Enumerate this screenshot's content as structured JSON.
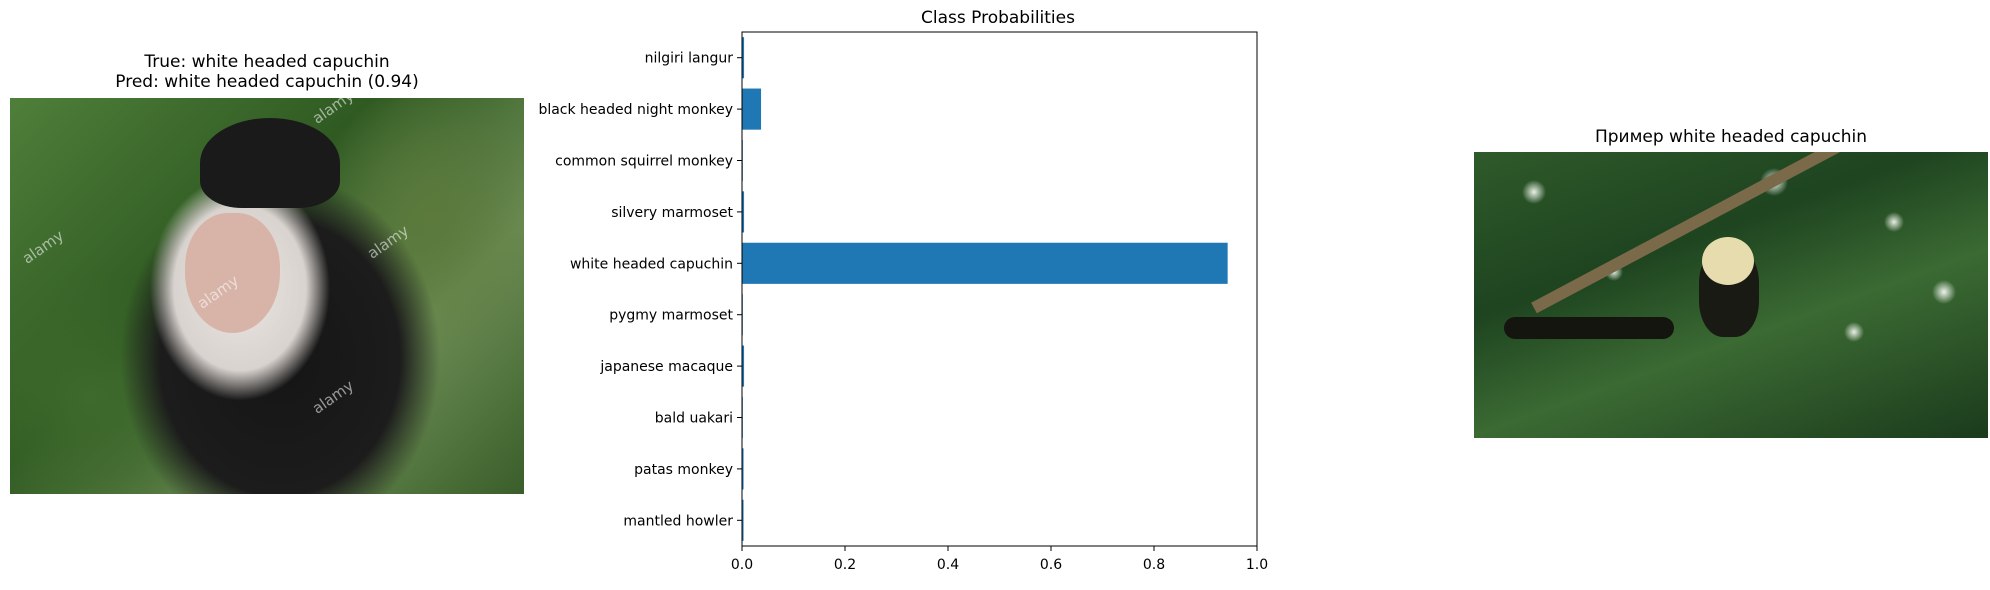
{
  "left_panel": {
    "title_line1": "True: white headed capuchin",
    "title_line2": "Pred: white headed capuchin (0.94)",
    "watermark": "alamy"
  },
  "right_panel": {
    "title": "Пример white headed capuchin"
  },
  "chart_data": {
    "type": "bar",
    "orientation": "horizontal",
    "title": "Class Probabilities",
    "categories": [
      "nilgiri langur",
      "black headed night monkey",
      "common squirrel monkey",
      "silvery marmoset",
      "white headed capuchin",
      "pygmy marmoset",
      "japanese macaque",
      "bald uakari",
      "patas monkey",
      "mantled howler"
    ],
    "values": [
      0.004,
      0.037,
      0.001,
      0.004,
      0.943,
      0.001,
      0.004,
      0.001,
      0.003,
      0.003
    ],
    "xlim": [
      0,
      1.0
    ],
    "xticks": [
      "0.0",
      "0.2",
      "0.4",
      "0.6",
      "0.8",
      "1.0"
    ],
    "xlabel": "",
    "ylabel": "",
    "grid": false,
    "bar_color": "#1f77b4"
  }
}
